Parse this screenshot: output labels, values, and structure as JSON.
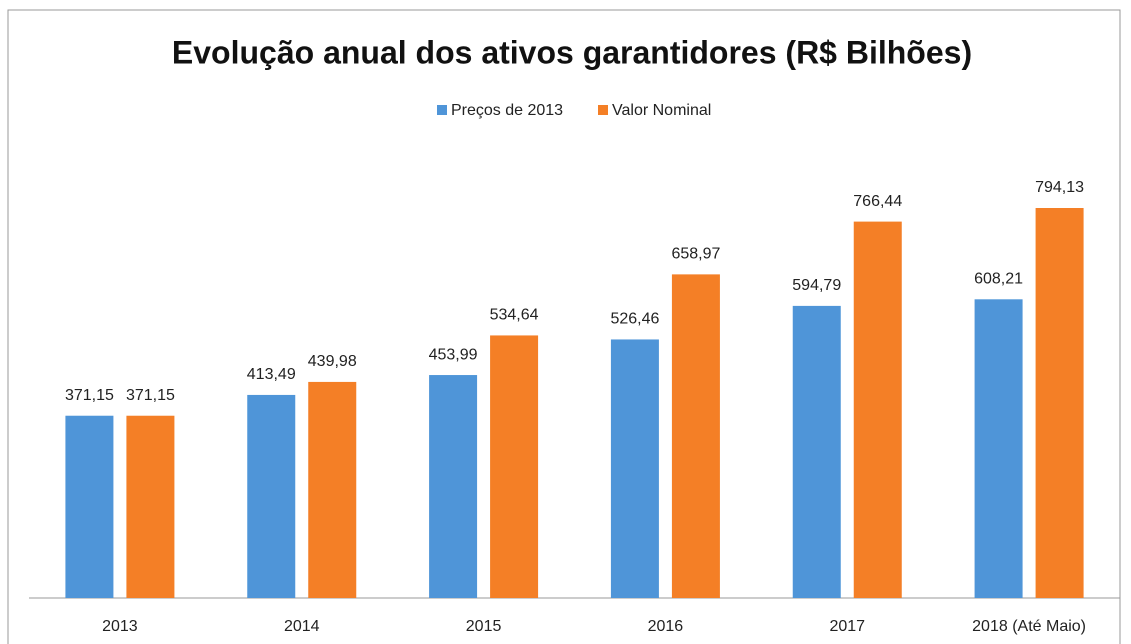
{
  "chart_data": {
    "type": "bar",
    "title": "Evolução anual dos ativos garantidores (R$ Bilhões)",
    "categories": [
      "2013",
      "2014",
      "2015",
      "2016",
      "2017",
      "2018 (Até Maio)"
    ],
    "series": [
      {
        "name": "Preços de 2013",
        "color": "#4f95d8",
        "values": [
          371.15,
          413.49,
          453.99,
          526.46,
          594.79,
          608.21
        ],
        "value_labels": [
          "371,15",
          "413,49",
          "453,99",
          "526,46",
          "594,79",
          "608,21"
        ]
      },
      {
        "name": "Valor Nominal",
        "color": "#f47f26",
        "values": [
          371.15,
          439.98,
          534.64,
          658.97,
          766.44,
          794.13
        ],
        "value_labels": [
          "371,15",
          "439,98",
          "534,64",
          "658,97",
          "766,44",
          "794,13"
        ]
      }
    ],
    "legend": "top"
  }
}
